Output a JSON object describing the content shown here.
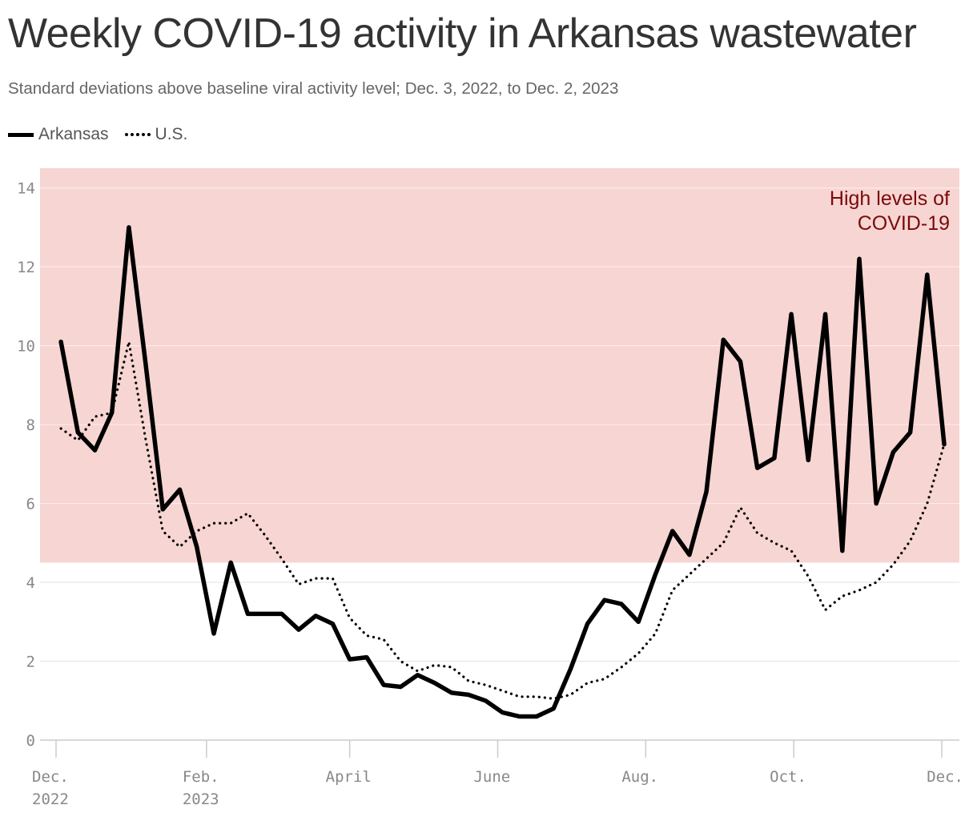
{
  "title": "Weekly COVID-19 activity in Arkansas wastewater",
  "subtitle": "Standard deviations above baseline viral activity level; Dec. 3, 2022, to Dec. 2, 2023",
  "legend": {
    "arkansas": "Arkansas",
    "us": "U.S."
  },
  "colors": {
    "band": "#f7d5d2",
    "band_label": "#7a0a0a",
    "lines": "#000000",
    "grid": "#e6e6e6"
  },
  "chart_data": {
    "type": "line",
    "title": "Weekly COVID-19 activity in Arkansas wastewater",
    "subtitle": "Standard deviations above baseline viral activity level; Dec. 3, 2022, to Dec. 2, 2023",
    "xlabel": "",
    "ylabel": "",
    "ylim": [
      0,
      14.5
    ],
    "y_ticks": [
      0,
      2,
      4,
      6,
      8,
      10,
      12,
      14
    ],
    "x_ticks": [
      {
        "date": "2022-12-01",
        "label": [
          "Dec.",
          "2022"
        ]
      },
      {
        "date": "2023-02-01",
        "label": [
          "Feb.",
          "2023"
        ]
      },
      {
        "date": "2023-04-01",
        "label": [
          "April"
        ]
      },
      {
        "date": "2023-06-01",
        "label": [
          "June"
        ]
      },
      {
        "date": "2023-08-01",
        "label": [
          "Aug."
        ]
      },
      {
        "date": "2023-10-01",
        "label": [
          "Oct."
        ]
      },
      {
        "date": "2023-12-01",
        "label": [
          "Dec."
        ]
      }
    ],
    "band": {
      "from": 4.5,
      "to": 14.5,
      "label": [
        "High levels of",
        "COVID-19"
      ]
    },
    "grid": true,
    "legend_position": "top-left",
    "x": [
      "2022-12-03",
      "2022-12-10",
      "2022-12-17",
      "2022-12-24",
      "2022-12-31",
      "2023-01-07",
      "2023-01-14",
      "2023-01-21",
      "2023-01-28",
      "2023-02-04",
      "2023-02-11",
      "2023-02-18",
      "2023-02-25",
      "2023-03-04",
      "2023-03-11",
      "2023-03-18",
      "2023-03-25",
      "2023-04-01",
      "2023-04-08",
      "2023-04-15",
      "2023-04-22",
      "2023-04-29",
      "2023-05-06",
      "2023-05-13",
      "2023-05-20",
      "2023-05-27",
      "2023-06-03",
      "2023-06-10",
      "2023-06-17",
      "2023-06-24",
      "2023-07-01",
      "2023-07-08",
      "2023-07-15",
      "2023-07-22",
      "2023-07-29",
      "2023-08-05",
      "2023-08-12",
      "2023-08-19",
      "2023-08-26",
      "2023-09-02",
      "2023-09-09",
      "2023-09-16",
      "2023-09-23",
      "2023-09-30",
      "2023-10-07",
      "2023-10-14",
      "2023-10-21",
      "2023-10-28",
      "2023-11-04",
      "2023-11-11",
      "2023-11-18",
      "2023-11-25",
      "2023-12-02"
    ],
    "series": [
      {
        "name": "Arkansas",
        "style": "solid",
        "values": [
          10.1,
          7.8,
          7.35,
          8.3,
          13.0,
          9.5,
          5.85,
          6.35,
          4.9,
          2.7,
          4.5,
          3.2,
          3.2,
          3.2,
          2.8,
          3.15,
          2.95,
          2.05,
          2.1,
          1.4,
          1.35,
          1.65,
          1.45,
          1.2,
          1.15,
          1.0,
          0.7,
          0.6,
          0.6,
          0.8,
          1.8,
          2.95,
          3.55,
          3.45,
          3.0,
          4.2,
          5.3,
          4.7,
          6.3,
          10.15,
          9.6,
          6.9,
          7.15,
          10.8,
          7.1,
          10.8,
          4.8,
          12.2,
          6.0,
          7.3,
          7.8,
          11.8,
          7.5
        ]
      },
      {
        "name": "U.S.",
        "style": "dotted",
        "values": [
          7.9,
          7.6,
          8.2,
          8.3,
          10.1,
          7.6,
          5.3,
          4.9,
          5.3,
          5.5,
          5.5,
          5.75,
          5.2,
          4.6,
          3.95,
          4.1,
          4.1,
          3.1,
          2.65,
          2.55,
          2.0,
          1.75,
          1.9,
          1.85,
          1.5,
          1.4,
          1.25,
          1.1,
          1.1,
          1.05,
          1.15,
          1.45,
          1.55,
          1.85,
          2.2,
          2.7,
          3.8,
          4.2,
          4.6,
          5.0,
          5.9,
          5.25,
          5.0,
          4.8,
          4.15,
          3.3,
          3.65,
          3.8,
          4.0,
          4.45,
          5.05,
          6.0,
          7.5
        ]
      }
    ]
  }
}
